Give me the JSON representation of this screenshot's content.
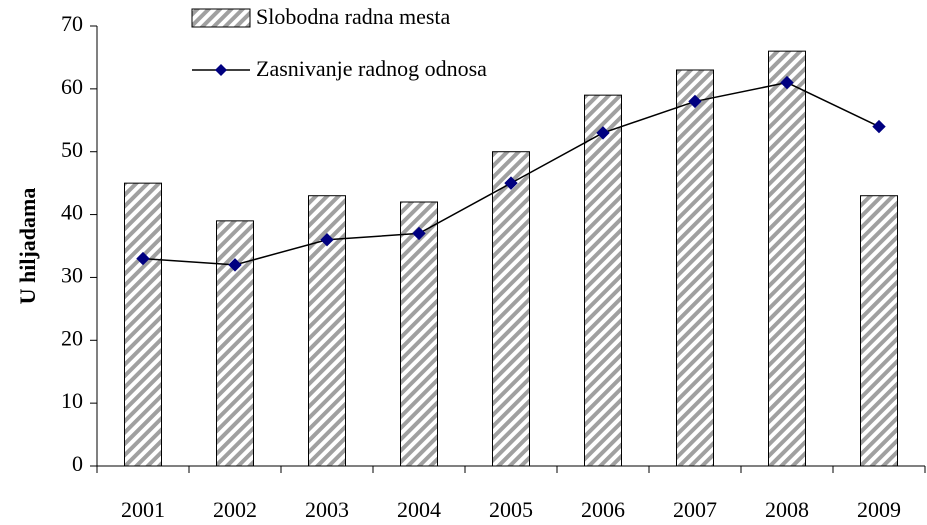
{
  "chart_data": {
    "type": "bar",
    "y_label": "U hiljadama",
    "categories": [
      "2001",
      "2002",
      "2003",
      "2004",
      "2005",
      "2006",
      "2007",
      "2008",
      "2009"
    ],
    "series": [
      {
        "name": "Slobodna radna mesta",
        "type": "bar",
        "color": "#a0a0a0",
        "values": [
          45,
          39,
          43,
          42,
          50,
          59,
          63,
          66,
          43
        ]
      },
      {
        "name": "Zasnivanje radnog odnosa",
        "type": "line",
        "color": "#000000",
        "marker_color": "#000080",
        "values": [
          33,
          32,
          36,
          37,
          45,
          53,
          58,
          61,
          54
        ]
      }
    ],
    "ylim": [
      0,
      70
    ],
    "yticks": [
      0,
      10,
      20,
      30,
      40,
      50,
      60,
      70
    ],
    "grid": false
  }
}
